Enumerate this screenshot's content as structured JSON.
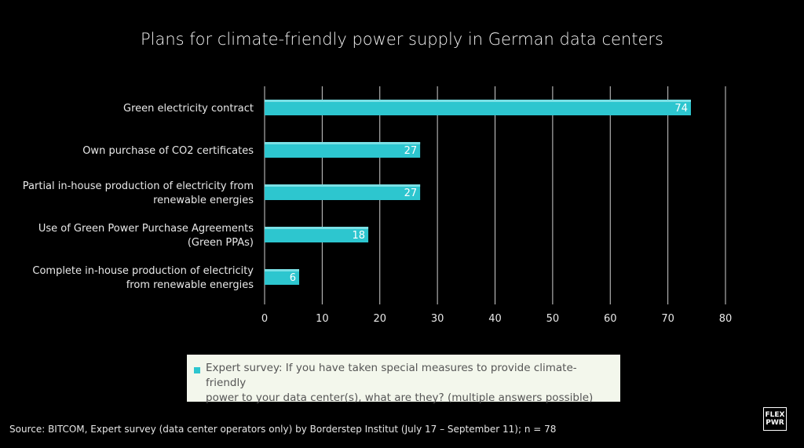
{
  "chart_data": {
    "type": "bar",
    "orientation": "horizontal",
    "title": "Plans for climate-friendly power supply in German data centers",
    "categories": [
      [
        "Green electricity contract"
      ],
      [
        "Own purchase of CO2 certificates"
      ],
      [
        "Partial in-house production of electricity from",
        "renewable energies"
      ],
      [
        "Use of Green Power Purchase Agreements",
        "(Green PPAs)"
      ],
      [
        "Complete in-house production of electricity",
        "from renewable energies"
      ]
    ],
    "series": [
      {
        "name": "Expert survey: If you have taken special measures to provide climate-friendly power to your data center(s), what are they? (multiple answers possible)",
        "values": [
          74,
          27,
          27,
          18,
          6
        ]
      }
    ],
    "xlim": [
      0,
      80
    ],
    "xticks": [
      0,
      10,
      20,
      30,
      40,
      50,
      60,
      70,
      80
    ],
    "grid": "vertical",
    "legend_position": "bottom",
    "colors": {
      "bar": "#2dc6cf",
      "bar_highlight": "#8fe6ea",
      "grid": "#cfcfcf",
      "background": "#000000"
    }
  },
  "legend": {
    "lines": [
      "Expert survey: If you have taken special measures to provide climate-friendly",
      "power to your data center(s), what are they? (multiple answers possible)"
    ]
  },
  "source": "Source: BITCOM, Expert survey (data center operators only) by Borderstep Institut (July 17 – September 11); n = 78",
  "logo": {
    "line1": "FLEX",
    "line2": "PWR"
  }
}
